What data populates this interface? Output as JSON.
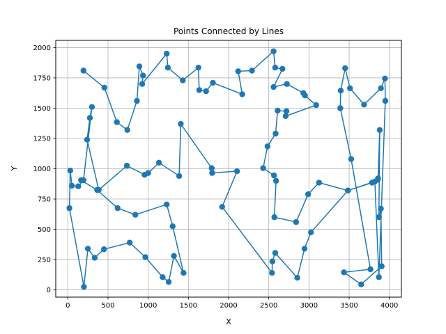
{
  "chart_data": {
    "type": "line",
    "title": "Points Connected by Lines",
    "xlabel": "X",
    "ylabel": "Y",
    "xlim": [
      -150,
      4150
    ],
    "ylim": [
      -60,
      2060
    ],
    "xticks": [
      0,
      500,
      1000,
      1500,
      2000,
      2500,
      3000,
      3500,
      4000
    ],
    "yticks": [
      0,
      250,
      500,
      750,
      1000,
      1250,
      1500,
      1750,
      2000
    ],
    "grid": true,
    "legend": "none",
    "line_color": "#1f77b4",
    "marker": "circle",
    "series": [
      {
        "x": [
          195,
          455,
          610,
          740,
          860,
          890,
          935,
          925,
          1230,
          1245,
          1430,
          1625,
          1635,
          1720,
          1805,
          2170,
          2120,
          2290,
          2560,
          2580,
          2670,
          2560,
          2725,
          2930,
          2950,
          3090,
          2710,
          2720,
          2610,
          2585,
          2485,
          2430,
          2565,
          2590,
          2570,
          2840,
          2990,
          3125,
          3485,
          3785,
          3855,
          3860,
          3880,
          3870,
          3895,
          3905,
          3650,
          3435,
          3765,
          3525,
          3390,
          3395,
          3450,
          3510,
          3685,
          3895,
          3945,
          3950,
          3870,
          3820,
          3485,
          3025,
          2945,
          2855,
          2580,
          2545,
          2540,
          1920,
          2105,
          1795,
          1790,
          1405,
          1385,
          1135,
          1000,
          955,
          735,
          385,
          240,
          275,
          300,
          195,
          130,
          50,
          30,
          20,
          200,
          250,
          335,
          450,
          770,
          965,
          1180,
          1255,
          1320,
          1440,
          1305,
          1230,
          840,
          620,
          365,
          165
        ],
        "y": [
          1810,
          1670,
          1385,
          1320,
          1560,
          1845,
          1770,
          1700,
          1950,
          1835,
          1730,
          1835,
          1650,
          1640,
          1710,
          1615,
          1805,
          1810,
          1970,
          1835,
          1825,
          1675,
          1700,
          1625,
          1605,
          1525,
          1435,
          1475,
          1480,
          1290,
          1185,
          1005,
          945,
          900,
          600,
          560,
          790,
          885,
          820,
          885,
          910,
          920,
          1320,
          600,
          670,
          195,
          45,
          145,
          170,
          1080,
          1500,
          1645,
          1830,
          1665,
          1530,
          1665,
          1745,
          1560,
          105,
          895,
          820,
          475,
          340,
          100,
          305,
          235,
          140,
          685,
          980,
          965,
          1005,
          1370,
          940,
          1050,
          965,
          950,
          1025,
          825,
          1240,
          1420,
          1510,
          905,
          855,
          860,
          985,
          675,
          25,
          340,
          265,
          335,
          390,
          270,
          105,
          65,
          280,
          140,
          525,
          705,
          620,
          675,
          825,
          905
        ]
      }
    ]
  }
}
